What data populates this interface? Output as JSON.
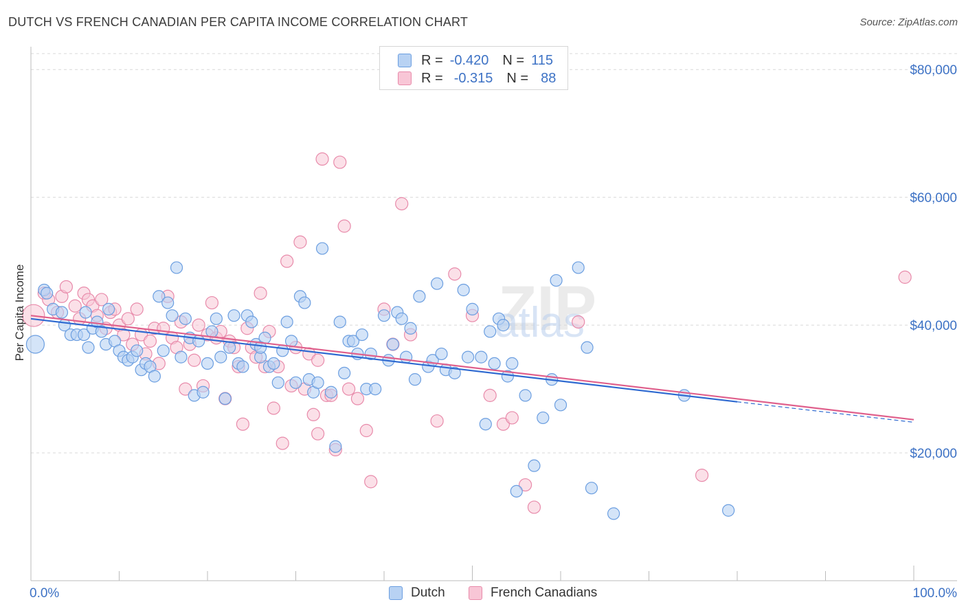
{
  "header": {
    "title": "DUTCH VS FRENCH CANADIAN PER CAPITA INCOME CORRELATION CHART",
    "source": "Source: ZipAtlas.com"
  },
  "legend": {
    "dutch": {
      "r_label": "R =",
      "r_value": "-0.420",
      "n_label": "N =",
      "n_value": "115"
    },
    "french": {
      "r_label": "R =",
      "r_value": "-0.315",
      "n_label": "N =",
      "n_value": "88"
    }
  },
  "bottom_legend": {
    "dutch": "Dutch",
    "french": "French Canadians"
  },
  "colors": {
    "dutch_fill": "#b8d2f3",
    "dutch_stroke": "#6b9ee0",
    "dutch_line": "#2e6ad1",
    "french_fill": "#f8c6d6",
    "french_stroke": "#e88aaa",
    "french_line": "#e0608c",
    "axis_text": "#3d72c5"
  },
  "chart_data": {
    "type": "scatter",
    "title": "DUTCH VS FRENCH CANADIAN PER CAPITA INCOME CORRELATION CHART",
    "xlabel": "",
    "ylabel": "Per Capita Income",
    "x_tick_labels": [
      "0.0%",
      "100.0%"
    ],
    "y_tick_labels": [
      "$20,000",
      "$40,000",
      "$60,000",
      "$80,000"
    ],
    "y_ticks": [
      20000,
      40000,
      60000,
      80000
    ],
    "xlim": [
      0,
      100
    ],
    "ylim": [
      0,
      82500
    ],
    "grid": true,
    "watermark": "ZIPatlas",
    "series": [
      {
        "name": "Dutch",
        "trend": {
          "x": [
            0,
            80
          ],
          "y": [
            41000,
            28000
          ],
          "dash_to": [
            100,
            24800
          ]
        },
        "points": [
          [
            0.5,
            37000
          ],
          [
            1.5,
            45500
          ],
          [
            1.8,
            45000
          ],
          [
            2.5,
            42500
          ],
          [
            3.5,
            42000
          ],
          [
            3.8,
            40000
          ],
          [
            4.5,
            38500
          ],
          [
            5.2,
            38500
          ],
          [
            6,
            38500
          ],
          [
            6.5,
            36500
          ],
          [
            7,
            39500
          ],
          [
            7.5,
            40500
          ],
          [
            8,
            39000
          ],
          [
            8.5,
            37000
          ],
          [
            8.8,
            42500
          ],
          [
            9.5,
            37500
          ],
          [
            10,
            36000
          ],
          [
            10.5,
            35000
          ],
          [
            11,
            34500
          ],
          [
            11.5,
            35000
          ],
          [
            12,
            36000
          ],
          [
            12.5,
            33000
          ],
          [
            13,
            34000
          ],
          [
            13.5,
            33500
          ],
          [
            14,
            32000
          ],
          [
            14.5,
            44500
          ],
          [
            15,
            36000
          ],
          [
            15.5,
            43500
          ],
          [
            16,
            41500
          ],
          [
            16.5,
            49000
          ],
          [
            17,
            35000
          ],
          [
            17.5,
            41000
          ],
          [
            18,
            38000
          ],
          [
            18.5,
            29000
          ],
          [
            19,
            37500
          ],
          [
            19.5,
            29500
          ],
          [
            20,
            34000
          ],
          [
            20.5,
            39000
          ],
          [
            21,
            41000
          ],
          [
            21.5,
            35000
          ],
          [
            22,
            28500
          ],
          [
            22.5,
            36500
          ],
          [
            23,
            41500
          ],
          [
            23.5,
            34000
          ],
          [
            24,
            33500
          ],
          [
            24.5,
            41500
          ],
          [
            25,
            40500
          ],
          [
            25.5,
            37000
          ],
          [
            26,
            35000
          ],
          [
            26.5,
            38000
          ],
          [
            27,
            33500
          ],
          [
            27.5,
            34000
          ],
          [
            28,
            31000
          ],
          [
            28.5,
            36000
          ],
          [
            29,
            40500
          ],
          [
            29.5,
            37500
          ],
          [
            30,
            31000
          ],
          [
            30.5,
            44500
          ],
          [
            31,
            43500
          ],
          [
            31.5,
            31500
          ],
          [
            32,
            29500
          ],
          [
            32.5,
            31000
          ],
          [
            33,
            52000
          ],
          [
            34,
            29500
          ],
          [
            34.5,
            21000
          ],
          [
            35,
            40500
          ],
          [
            35.5,
            32500
          ],
          [
            36,
            37500
          ],
          [
            36.5,
            37500
          ],
          [
            37,
            35500
          ],
          [
            37.5,
            38500
          ],
          [
            38,
            30000
          ],
          [
            39,
            30000
          ],
          [
            40,
            41500
          ],
          [
            40.5,
            34500
          ],
          [
            41,
            37000
          ],
          [
            41.5,
            42000
          ],
          [
            42,
            41000
          ],
          [
            42.5,
            35000
          ],
          [
            43,
            39500
          ],
          [
            43.5,
            31500
          ],
          [
            44,
            44500
          ],
          [
            45,
            33500
          ],
          [
            45.5,
            34500
          ],
          [
            46,
            46500
          ],
          [
            46.5,
            35500
          ],
          [
            47,
            33000
          ],
          [
            48,
            32500
          ],
          [
            49,
            45500
          ],
          [
            49.5,
            35000
          ],
          [
            50,
            42500
          ],
          [
            51,
            35000
          ],
          [
            51.5,
            24500
          ],
          [
            52,
            39000
          ],
          [
            52.5,
            34000
          ],
          [
            53,
            41000
          ],
          [
            53.5,
            40000
          ],
          [
            54,
            32000
          ],
          [
            54.5,
            34000
          ],
          [
            55,
            14000
          ],
          [
            56,
            29000
          ],
          [
            57,
            18000
          ],
          [
            58,
            25500
          ],
          [
            59,
            31500
          ],
          [
            60,
            27500
          ],
          [
            62,
            49000
          ],
          [
            63,
            36500
          ],
          [
            63.5,
            14500
          ],
          [
            66,
            10500
          ],
          [
            74,
            29000
          ],
          [
            79,
            11000
          ],
          [
            59.5,
            47000
          ],
          [
            38.5,
            35500
          ],
          [
            26,
            36500
          ],
          [
            6.2,
            42000
          ]
        ]
      },
      {
        "name": "French Canadians",
        "trend": {
          "x": [
            0,
            100
          ],
          "y": [
            41500,
            25200
          ]
        },
        "points": [
          [
            0.3,
            41500
          ],
          [
            1.5,
            45000
          ],
          [
            2,
            44000
          ],
          [
            3,
            42000
          ],
          [
            3.5,
            44500
          ],
          [
            4,
            46000
          ],
          [
            5,
            43000
          ],
          [
            5.5,
            41000
          ],
          [
            6,
            45000
          ],
          [
            6.5,
            44000
          ],
          [
            7,
            43000
          ],
          [
            7.5,
            41500
          ],
          [
            8,
            44000
          ],
          [
            8.5,
            39500
          ],
          [
            9,
            42000
          ],
          [
            9.5,
            42500
          ],
          [
            10,
            40000
          ],
          [
            10.5,
            38500
          ],
          [
            11,
            41000
          ],
          [
            11.5,
            37000
          ],
          [
            12,
            42500
          ],
          [
            12.5,
            38500
          ],
          [
            13,
            35500
          ],
          [
            13.5,
            37500
          ],
          [
            14,
            39500
          ],
          [
            14.5,
            34000
          ],
          [
            15,
            39500
          ],
          [
            15.5,
            44500
          ],
          [
            16,
            38000
          ],
          [
            16.5,
            36500
          ],
          [
            17,
            40500
          ],
          [
            17.5,
            30000
          ],
          [
            18,
            37000
          ],
          [
            18.5,
            34500
          ],
          [
            19,
            40000
          ],
          [
            19.5,
            30500
          ],
          [
            20,
            38500
          ],
          [
            20.5,
            43500
          ],
          [
            21,
            38000
          ],
          [
            21.5,
            39000
          ],
          [
            22,
            28500
          ],
          [
            22.5,
            37500
          ],
          [
            23,
            36500
          ],
          [
            23.5,
            33500
          ],
          [
            24,
            24500
          ],
          [
            24.5,
            39500
          ],
          [
            25,
            36500
          ],
          [
            25.5,
            35000
          ],
          [
            26,
            45000
          ],
          [
            26.5,
            33500
          ],
          [
            27,
            39000
          ],
          [
            27.5,
            27000
          ],
          [
            28,
            33500
          ],
          [
            28.5,
            21500
          ],
          [
            29,
            50000
          ],
          [
            29.5,
            30500
          ],
          [
            30,
            36500
          ],
          [
            30.5,
            53000
          ],
          [
            31,
            30000
          ],
          [
            31.5,
            35500
          ],
          [
            32,
            26000
          ],
          [
            32.5,
            34500
          ],
          [
            33,
            66000
          ],
          [
            33.5,
            29000
          ],
          [
            34,
            29000
          ],
          [
            34.5,
            20500
          ],
          [
            35,
            65500
          ],
          [
            35.5,
            55500
          ],
          [
            36,
            30000
          ],
          [
            37,
            28500
          ],
          [
            38,
            23500
          ],
          [
            38.5,
            15500
          ],
          [
            40,
            42500
          ],
          [
            41,
            37000
          ],
          [
            42,
            59000
          ],
          [
            43,
            38500
          ],
          [
            46,
            25000
          ],
          [
            48,
            48000
          ],
          [
            50,
            41500
          ],
          [
            52,
            29000
          ],
          [
            53.5,
            24500
          ],
          [
            54.5,
            25500
          ],
          [
            56,
            15000
          ],
          [
            57,
            11500
          ],
          [
            62,
            40500
          ],
          [
            76,
            16500
          ],
          [
            99,
            47500
          ],
          [
            32.5,
            23000
          ]
        ]
      }
    ]
  }
}
